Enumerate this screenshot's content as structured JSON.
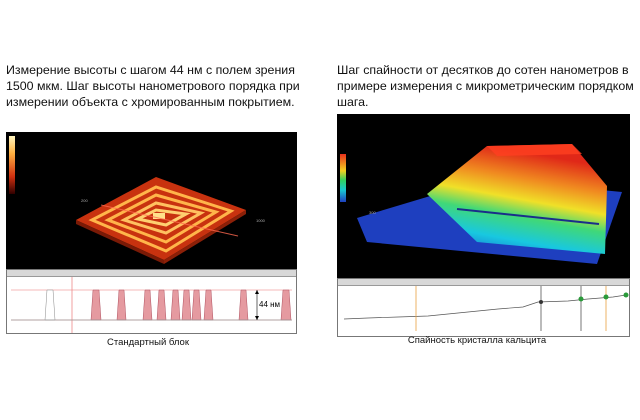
{
  "left": {
    "description": "Измерение высоты с шагом 44 нм с полем зрения 1500 мкм. Шаг высоты нанометрового порядка при измерении объекта с хромированным покрытием.",
    "profile_label": "44 нм",
    "caption": "Стандартный блок",
    "colors": {
      "surface": "#e0441a",
      "highlight": "#ffd070",
      "background": "#000000",
      "profile_fill": "#e59aa0"
    }
  },
  "right": {
    "description": "Шаг спайности от десятков до сотен нанометров в примере измерения с микрометрическим порядком шага.",
    "caption": "Спайность кристалла кальцита",
    "colors": {
      "low": "#1e3fbf",
      "mid": "#18c8d0",
      "high": "#e8301c",
      "marker": "#2a9a3a"
    }
  }
}
